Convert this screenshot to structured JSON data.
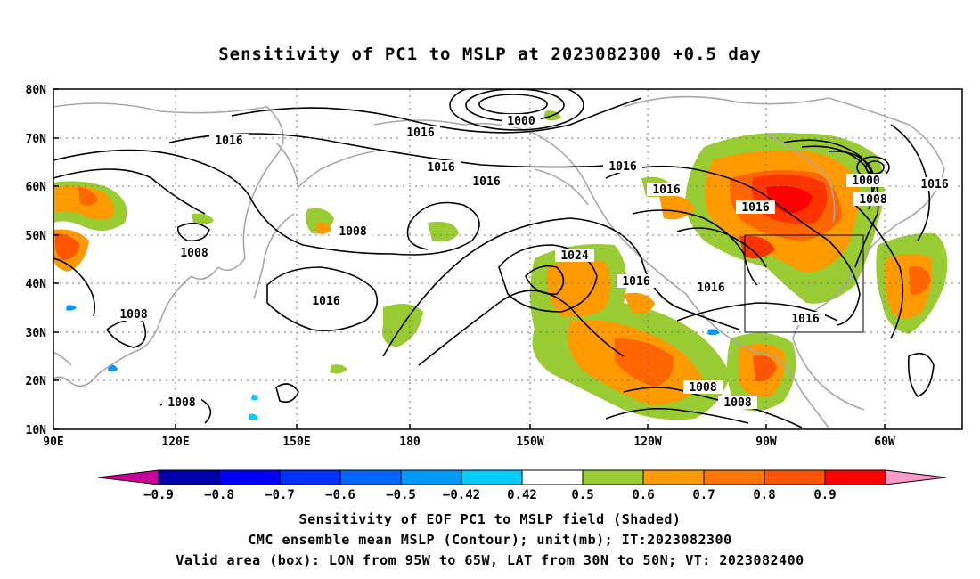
{
  "title": "Sensitivity of PC1 to MSLP at 2023082300 +0.5 day",
  "map": {
    "lat_labels": [
      "80N",
      "70N",
      "60N",
      "50N",
      "40N",
      "30N",
      "20N",
      "10N"
    ],
    "lon_labels": [
      "90E",
      "120E",
      "150E",
      "180",
      "150W",
      "120W",
      "90W",
      "60W"
    ],
    "contour_labels": [
      "1000",
      "1016",
      "1016",
      "1016",
      "1016",
      "1016",
      "1008",
      "1008",
      "1008",
      "1024",
      "1016",
      "1016",
      "1016",
      "1016",
      "1000",
      "1008",
      "1016",
      "1008",
      "1008",
      "1016"
    ],
    "shading_colors": {
      "green": "#99cc33",
      "orange": "#ff9900",
      "dark_orange": "#ff6600",
      "red_orange": "#ff3300",
      "red": "#ff0000",
      "light_blue": "#00ccff",
      "blue": "#0099ff"
    },
    "valid_box": {
      "lon_from": "95W",
      "lon_to": "65W",
      "lat_from": "30N",
      "lat_to": "50N"
    }
  },
  "colorbar": {
    "labels": [
      "−0.9",
      "−0.8",
      "−0.7",
      "−0.6",
      "−0.5",
      "−0.42",
      "0.42",
      "0.5",
      "0.6",
      "0.7",
      "0.8",
      "0.9"
    ],
    "colors": [
      "#cc0099",
      "#0000aa",
      "#0000ff",
      "#0033ff",
      "#0066ff",
      "#0099ff",
      "#00ccff",
      "#ffffff",
      "#99cc33",
      "#ff9900",
      "#ff7700",
      "#ff5500",
      "#ff2200",
      "#ff0000",
      "#ff99cc"
    ]
  },
  "footer": {
    "line1": "Sensitivity of EOF PC1 to MSLP field (Shaded)",
    "line2": "CMC ensemble mean MSLP (Contour); unit(mb); IT:2023082300",
    "line3": "Valid area (box): LON from 95W to 65W, LAT from 30N to 50N; VT: 2023082400"
  }
}
